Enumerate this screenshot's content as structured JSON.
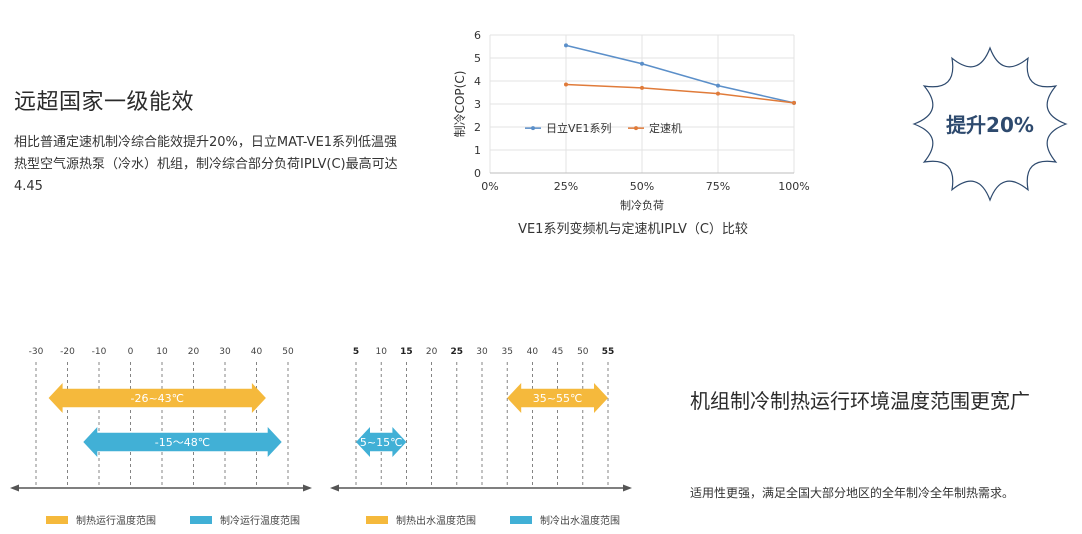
{
  "section1": {
    "title": "远超国家一级能效",
    "desc": "相比普通定速机制冷综合能效提升20%，日立MAT-VE1系列低温强热型空气源热泵（冷水）机组，制冷综合部分负荷IPLV(C)最高可达4.45"
  },
  "badge": {
    "text": "提升20%",
    "color": "#2e4a6e"
  },
  "section2": {
    "title": "机组制冷制热运行环境温度范围更宽广",
    "desc": "适用性更强，满足全国大部分地区的全年制冷全年制热需求。"
  },
  "colors": {
    "ve1": "#5b8fc9",
    "fixed": "#e07b3a",
    "heat": "#f5b93c",
    "cool": "#41b0d6",
    "axis": "#555555",
    "grid": "#e3e3e3"
  },
  "legend_left": [
    {
      "label": "制热运行温度范围",
      "color": "#f5b93c"
    },
    {
      "label": "制冷运行温度范围",
      "color": "#41b0d6"
    }
  ],
  "legend_right": [
    {
      "label": "制热出水温度范围",
      "color": "#f5b93c"
    },
    {
      "label": "制冷出水温度范围",
      "color": "#41b0d6"
    }
  ],
  "chart_data": [
    {
      "type": "line",
      "title": "VE1系列变频机与定速机IPLV（C）比较",
      "xlabel": "制冷负荷",
      "ylabel": "制冷COP(C)",
      "x": [
        "0%",
        "25%",
        "50%",
        "75%",
        "100%"
      ],
      "x_values": [
        0,
        25,
        50,
        75,
        100
      ],
      "ylim": [
        0,
        6
      ],
      "yticks": [
        0,
        1,
        2,
        3,
        4,
        5,
        6
      ],
      "grid": true,
      "legend": "inside-left",
      "series": [
        {
          "name": "日立VE1系列",
          "x": [
            25,
            50,
            75,
            100
          ],
          "values": [
            5.55,
            4.75,
            3.8,
            3.05
          ],
          "color": "#5b8fc9"
        },
        {
          "name": "定速机",
          "x": [
            25,
            50,
            75,
            100
          ],
          "values": [
            3.85,
            3.7,
            3.45,
            3.05
          ],
          "color": "#e07b3a"
        }
      ]
    },
    {
      "type": "bar",
      "orientation": "horizontal-range",
      "ticks": [
        -30,
        -20,
        -10,
        0,
        10,
        20,
        30,
        40,
        50
      ],
      "ranges": [
        {
          "label": "-26~43℃",
          "from": -26,
          "to": 43,
          "color": "#f5b93c"
        },
        {
          "label": "-15～48℃",
          "from": -15,
          "to": 48,
          "color": "#41b0d6"
        }
      ]
    },
    {
      "type": "bar",
      "orientation": "horizontal-range",
      "ticks": [
        5,
        10,
        15,
        20,
        25,
        30,
        35,
        40,
        45,
        50,
        55
      ],
      "bold_ticks": [
        5,
        15,
        25,
        55
      ],
      "ranges": [
        {
          "label": "35~55℃",
          "from": 35,
          "to": 55,
          "color": "#f5b93c"
        },
        {
          "label": "5~15℃",
          "from": 5,
          "to": 15,
          "color": "#41b0d6"
        }
      ]
    }
  ]
}
